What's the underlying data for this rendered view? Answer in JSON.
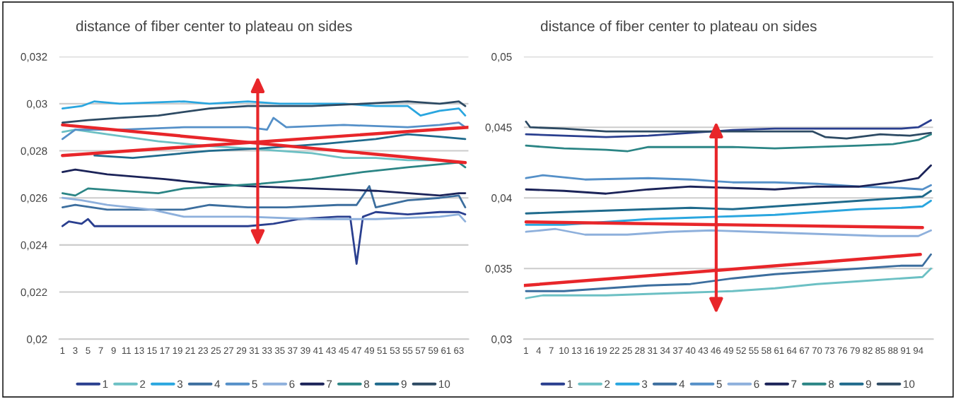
{
  "chart_data": [
    {
      "type": "line",
      "title": "distance of fiber center to plateau on sides",
      "xlim": [
        0.5,
        64.5
      ],
      "xticks": [
        1,
        3,
        5,
        7,
        9,
        11,
        13,
        15,
        17,
        19,
        21,
        23,
        25,
        27,
        29,
        31,
        33,
        35,
        37,
        39,
        41,
        43,
        45,
        47,
        49,
        51,
        53,
        55,
        57,
        59,
        61,
        63
      ],
      "ylim": [
        0.02,
        0.032
      ],
      "yticks": [
        {
          "value": 0.02,
          "label": "0,02"
        },
        {
          "value": 0.022,
          "label": "0,022"
        },
        {
          "value": 0.024,
          "label": "0,024"
        },
        {
          "value": 0.026,
          "label": "0,026"
        },
        {
          "value": 0.028,
          "label": "0,028"
        },
        {
          "value": 0.03,
          "label": "0,03"
        },
        {
          "value": 0.032,
          "label": "0,032"
        }
      ],
      "grid": "y",
      "legend": "bottom",
      "marker": "none",
      "line_style": "solid",
      "series": [
        {
          "name": "1",
          "color": "#2a3f8f",
          "x": [
            1,
            2,
            4,
            5,
            6,
            20,
            30,
            34,
            38,
            44,
            46,
            47,
            48,
            50,
            55,
            60,
            63,
            64
          ],
          "values": [
            0.0248,
            0.025,
            0.0249,
            0.0251,
            0.0248,
            0.0248,
            0.0248,
            0.0249,
            0.0251,
            0.0252,
            0.0252,
            0.0232,
            0.0252,
            0.0254,
            0.0253,
            0.0254,
            0.0254,
            0.0253
          ]
        },
        {
          "name": "2",
          "color": "#6cc0c4",
          "x": [
            1,
            3,
            8,
            16,
            24,
            30,
            35,
            40,
            45,
            50,
            55,
            60,
            64
          ],
          "values": [
            0.0288,
            0.0289,
            0.0287,
            0.0284,
            0.0282,
            0.0281,
            0.028,
            0.0279,
            0.0277,
            0.0277,
            0.0276,
            0.0276,
            0.0275
          ]
        },
        {
          "name": "3",
          "color": "#2aa6df",
          "x": [
            1,
            4,
            6,
            10,
            20,
            24,
            30,
            35,
            40,
            45,
            50,
            55,
            57,
            60,
            63,
            64
          ],
          "values": [
            0.0298,
            0.0299,
            0.0301,
            0.03,
            0.0301,
            0.03,
            0.0301,
            0.03,
            0.03,
            0.03,
            0.0299,
            0.0299,
            0.0295,
            0.0297,
            0.0298,
            0.0295
          ]
        },
        {
          "name": "4",
          "color": "#3c6e9e",
          "x": [
            1,
            3,
            8,
            20,
            24,
            30,
            36,
            44,
            47,
            48,
            49,
            50,
            55,
            60,
            63,
            64
          ],
          "values": [
            0.0256,
            0.0257,
            0.0255,
            0.0255,
            0.0257,
            0.0256,
            0.0256,
            0.0257,
            0.0257,
            0.0261,
            0.0265,
            0.0256,
            0.0259,
            0.026,
            0.0261,
            0.0256
          ]
        },
        {
          "name": "5",
          "color": "#5590c8",
          "x": [
            1,
            3,
            10,
            20,
            30,
            33,
            34,
            36,
            45,
            55,
            60,
            63,
            64
          ],
          "values": [
            0.0285,
            0.0289,
            0.0289,
            0.029,
            0.029,
            0.0289,
            0.0294,
            0.029,
            0.0291,
            0.029,
            0.0291,
            0.0292,
            0.029
          ]
        },
        {
          "name": "6",
          "color": "#8eb0dc",
          "x": [
            1,
            4,
            8,
            15,
            20,
            30,
            40,
            50,
            60,
            63,
            64
          ],
          "values": [
            0.026,
            0.0259,
            0.0257,
            0.0255,
            0.0252,
            0.0252,
            0.0251,
            0.0251,
            0.0252,
            0.0253,
            0.025
          ]
        },
        {
          "name": "7",
          "color": "#1b2358",
          "x": [
            1,
            3,
            8,
            17,
            24,
            30,
            40,
            50,
            60,
            63,
            64
          ],
          "values": [
            0.0271,
            0.0272,
            0.027,
            0.0268,
            0.0266,
            0.0265,
            0.0264,
            0.0263,
            0.0261,
            0.0262,
            0.0262
          ]
        },
        {
          "name": "8",
          "color": "#2b8585",
          "x": [
            1,
            3,
            5,
            10,
            16,
            20,
            26,
            32,
            40,
            48,
            55,
            63,
            64
          ],
          "values": [
            0.0262,
            0.0261,
            0.0264,
            0.0263,
            0.0262,
            0.0264,
            0.0265,
            0.0266,
            0.0268,
            0.0271,
            0.0273,
            0.0275,
            0.0273
          ]
        },
        {
          "name": "9",
          "color": "#1f6a8c",
          "x": [
            6,
            12,
            24,
            32,
            42,
            50,
            55,
            60,
            64
          ],
          "values": [
            0.0278,
            0.0277,
            0.028,
            0.0281,
            0.0283,
            0.0285,
            0.0287,
            0.0286,
            0.0285
          ]
        },
        {
          "name": "10",
          "color": "#2d4a63",
          "x": [
            1,
            5,
            10,
            16,
            24,
            30,
            40,
            48,
            55,
            60,
            63,
            64
          ],
          "values": [
            0.0292,
            0.0293,
            0.0294,
            0.0295,
            0.0298,
            0.0299,
            0.0299,
            0.03,
            0.0301,
            0.03,
            0.0301,
            0.0299
          ]
        },
        {
          "type": "line",
          "color": "#e8262a",
          "x": [
            1,
            64
          ],
          "values": [
            0.0291,
            0.0275
          ]
        },
        {
          "type": "line",
          "color": "#e8262a",
          "x": [
            1,
            64.5
          ],
          "values": [
            0.0278,
            0.029
          ]
        }
      ]
    },
    {
      "type": "line",
      "title": "distance of fiber center to plateau on sides",
      "xlim": [
        0.5,
        97.5
      ],
      "xticks": [
        1,
        4,
        7,
        10,
        13,
        16,
        19,
        22,
        25,
        28,
        31,
        34,
        37,
        40,
        43,
        46,
        49,
        52,
        55,
        58,
        61,
        64,
        67,
        70,
        73,
        76,
        79,
        82,
        85,
        88,
        91,
        94
      ],
      "ylim": [
        0.03,
        0.05
      ],
      "yticks": [
        {
          "value": 0.03,
          "label": "0,03"
        },
        {
          "value": 0.035,
          "label": "0,035"
        },
        {
          "value": 0.04,
          "label": "0,04"
        },
        {
          "value": 0.045,
          "label": "0,045"
        },
        {
          "value": 0.05,
          "label": "0,05"
        }
      ],
      "grid": "y",
      "legend": "bottom",
      "marker": "none",
      "line_style": "solid",
      "series": [
        {
          "name": "1",
          "color": "#2a3f8f",
          "x": [
            1,
            10,
            20,
            30,
            40,
            50,
            60,
            70,
            80,
            90,
            94,
            97
          ],
          "values": [
            0.0445,
            0.0444,
            0.0443,
            0.0444,
            0.0446,
            0.0448,
            0.0449,
            0.0449,
            0.0449,
            0.0449,
            0.045,
            0.0455
          ]
        },
        {
          "name": "2",
          "color": "#6cc0c4",
          "x": [
            1,
            5,
            20,
            30,
            40,
            50,
            60,
            70,
            80,
            90,
            95,
            97
          ],
          "values": [
            0.0329,
            0.0331,
            0.0331,
            0.0332,
            0.0333,
            0.0334,
            0.0336,
            0.0339,
            0.0341,
            0.0343,
            0.0344,
            0.035
          ]
        },
        {
          "name": "3",
          "color": "#2aa6df",
          "x": [
            1,
            10,
            20,
            30,
            40,
            50,
            60,
            70,
            80,
            90,
            95,
            97
          ],
          "values": [
            0.0381,
            0.0381,
            0.0383,
            0.0385,
            0.0386,
            0.0387,
            0.0388,
            0.039,
            0.0392,
            0.0393,
            0.0394,
            0.0398
          ]
        },
        {
          "name": "4",
          "color": "#3c6e9e",
          "x": [
            1,
            10,
            20,
            30,
            40,
            50,
            60,
            70,
            80,
            90,
            95,
            97
          ],
          "values": [
            0.0334,
            0.0334,
            0.0336,
            0.0338,
            0.0339,
            0.0343,
            0.0346,
            0.0348,
            0.035,
            0.0352,
            0.0352,
            0.036
          ]
        },
        {
          "name": "5",
          "color": "#5590c8",
          "x": [
            1,
            5,
            15,
            30,
            40,
            50,
            60,
            70,
            80,
            90,
            95,
            97
          ],
          "values": [
            0.0414,
            0.0416,
            0.0413,
            0.0414,
            0.0413,
            0.0411,
            0.0411,
            0.041,
            0.0408,
            0.0407,
            0.0406,
            0.0409
          ]
        },
        {
          "name": "6",
          "color": "#8eb0dc",
          "x": [
            1,
            8,
            15,
            25,
            35,
            45,
            55,
            65,
            75,
            85,
            94,
            97
          ],
          "values": [
            0.0376,
            0.0378,
            0.0374,
            0.0374,
            0.0376,
            0.0377,
            0.0376,
            0.0375,
            0.0374,
            0.0373,
            0.0373,
            0.0377
          ]
        },
        {
          "name": "7",
          "color": "#1b2358",
          "x": [
            1,
            10,
            20,
            30,
            40,
            50,
            60,
            70,
            80,
            88,
            94,
            97
          ],
          "values": [
            0.0406,
            0.0405,
            0.0403,
            0.0406,
            0.0408,
            0.0407,
            0.0406,
            0.0408,
            0.0408,
            0.0411,
            0.0414,
            0.0423
          ]
        },
        {
          "name": "8",
          "color": "#2b8585",
          "x": [
            1,
            10,
            20,
            25,
            30,
            40,
            50,
            60,
            70,
            80,
            88,
            94,
            97
          ],
          "values": [
            0.0437,
            0.0435,
            0.0434,
            0.0433,
            0.0436,
            0.0436,
            0.0436,
            0.0435,
            0.0436,
            0.0437,
            0.0438,
            0.0441,
            0.0445
          ]
        },
        {
          "name": "9",
          "color": "#1f6a8c",
          "x": [
            1,
            10,
            20,
            30,
            40,
            50,
            60,
            70,
            80,
            90,
            95,
            97
          ],
          "values": [
            0.0389,
            0.039,
            0.0391,
            0.0392,
            0.0393,
            0.0392,
            0.0394,
            0.0396,
            0.0398,
            0.04,
            0.0401,
            0.0405
          ]
        },
        {
          "name": "10",
          "color": "#2d4a63",
          "x": [
            1,
            2,
            10,
            20,
            40,
            60,
            69,
            72,
            77,
            85,
            92,
            97
          ],
          "values": [
            0.0454,
            0.045,
            0.0449,
            0.0447,
            0.0447,
            0.0447,
            0.0447,
            0.0443,
            0.0442,
            0.0445,
            0.0444,
            0.0446
          ]
        },
        {
          "type": "line",
          "color": "#e8262a",
          "x": [
            1,
            95
          ],
          "values": [
            0.0383,
            0.0379
          ]
        },
        {
          "type": "line",
          "color": "#e8262a",
          "x": [
            0.5,
            94.5
          ],
          "values": [
            0.0338,
            0.036
          ]
        }
      ]
    }
  ]
}
